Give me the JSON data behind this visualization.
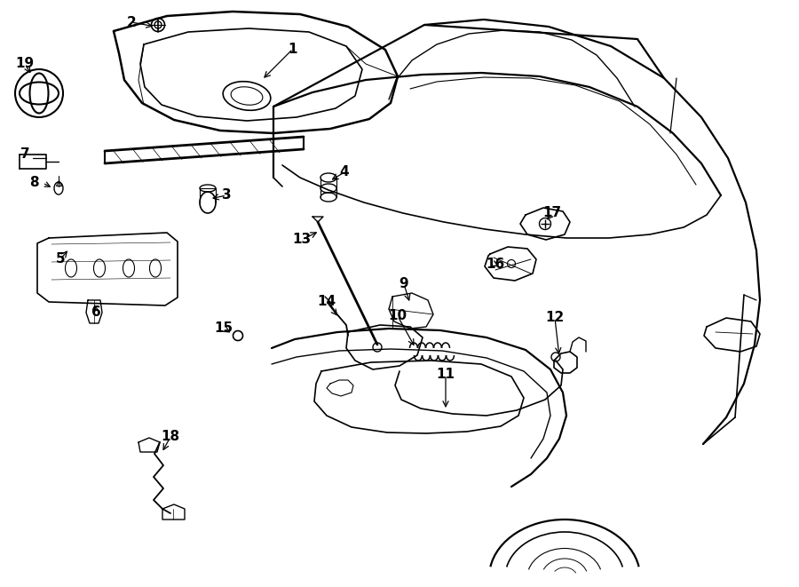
{
  "background_color": "#ffffff",
  "line_color": "#000000",
  "figsize": [
    9.0,
    6.61
  ],
  "dpi": 100
}
